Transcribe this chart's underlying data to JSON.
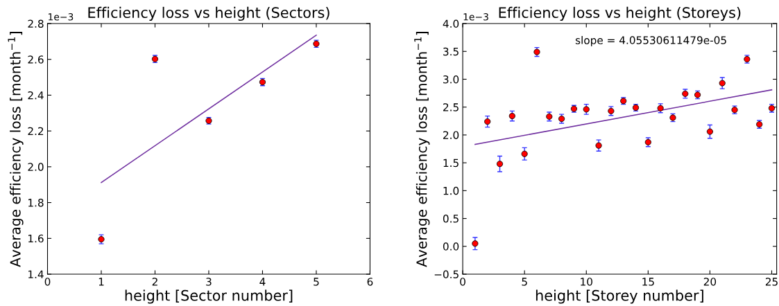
{
  "chart_data": [
    {
      "type": "scatter",
      "title": "Efficiency loss vs height (Sectors)",
      "xlabel": "height [Sector number]",
      "ylabel": "Average efficiency loss [month$^{−1}$]",
      "xlim": [
        0,
        6
      ],
      "xticks": [
        0,
        1,
        2,
        3,
        4,
        5,
        6
      ],
      "ylim": [
        1.4,
        2.8
      ],
      "yticks": [
        1.4,
        1.6,
        1.8,
        {
          "value": 2.0,
          "label": "2.0"
        },
        2.2,
        2.4,
        2.6,
        2.8
      ],
      "grid": false,
      "legend": false,
      "annotations": [
        "1e−3"
      ],
      "series": [
        {
          "marker": "circle",
          "color": "#ff0000",
          "x": [
            1,
            2,
            3,
            4,
            5
          ],
          "values": [
            1.595,
            2.602,
            2.257,
            2.473,
            2.687
          ],
          "errors": [
            0.025,
            0.02,
            0.018,
            0.02,
            0.02
          ]
        },
        {
          "type": "line",
          "marker": "none",
          "color": "#7030a0",
          "x": [
            1,
            5
          ],
          "values": [
            1.912,
            2.735
          ]
        }
      ]
    },
    {
      "type": "scatter",
      "title": "Efficiency loss vs height (Storeys)",
      "xlabel": "height [Storey number]",
      "ylabel": "Average efficiency loss [month$^{−1}$]",
      "xlim": [
        0,
        25.4
      ],
      "xticks": [
        0,
        5,
        10,
        15,
        20,
        25
      ],
      "ylim": [
        -0.5,
        4.0
      ],
      "yticks": [
        {
          "value": -0.5,
          "label": "−0.5"
        },
        {
          "value": 0,
          "label": "0.0"
        },
        0.5,
        {
          "value": 1,
          "label": "1.0"
        },
        1.5,
        {
          "value": 2,
          "label": "2.0"
        },
        2.5,
        {
          "value": 3,
          "label": "3.0"
        },
        3.5,
        {
          "value": 4,
          "label": "4.0"
        }
      ],
      "grid": false,
      "legend": false,
      "annotations": [
        "1e−3",
        "slope = 4.05530611479e-05"
      ],
      "series": [
        {
          "marker": "circle",
          "color": "#ff0000",
          "x": [
            1,
            2,
            3,
            4,
            5,
            6,
            7,
            8,
            9,
            10,
            11,
            12,
            13,
            14,
            15,
            16,
            17,
            18,
            19,
            20,
            21,
            22,
            23,
            24,
            25
          ],
          "values": [
            0.05,
            2.24,
            1.48,
            2.34,
            1.66,
            3.49,
            2.33,
            2.29,
            2.47,
            2.46,
            1.81,
            2.43,
            2.61,
            2.49,
            1.87,
            2.48,
            2.31,
            2.74,
            2.72,
            2.06,
            2.93,
            2.45,
            3.36,
            2.19,
            2.48
          ],
          "errors": [
            0.11,
            0.1,
            0.14,
            0.09,
            0.11,
            0.08,
            0.08,
            0.08,
            0.06,
            0.09,
            0.1,
            0.08,
            0.06,
            0.06,
            0.08,
            0.08,
            0.07,
            0.08,
            0.07,
            0.12,
            0.1,
            0.07,
            0.07,
            0.07,
            0.07
          ]
        },
        {
          "type": "line",
          "marker": "none",
          "color": "#7030a0",
          "x": [
            1,
            25
          ],
          "values": [
            1.83,
            2.81
          ]
        }
      ]
    }
  ]
}
